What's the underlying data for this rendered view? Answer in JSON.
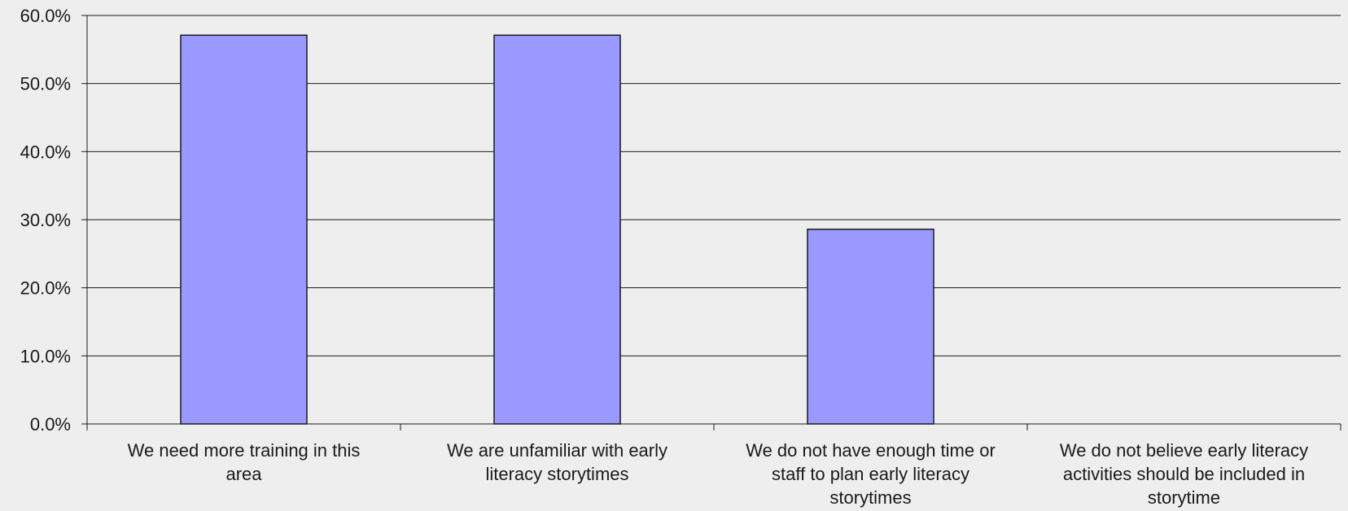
{
  "chart_data": {
    "type": "bar",
    "categories": [
      "We need more training in this area",
      "We are unfamiliar with early literacy storytimes",
      "We do not have enough time or staff to plan early literacy storytimes",
      "We do not believe early literacy activities should be included in storytime"
    ],
    "category_label_lines": [
      [
        "We need more training in this",
        "area"
      ],
      [
        "We are unfamiliar with early",
        "literacy storytimes"
      ],
      [
        "We do not have enough time or",
        "staff to plan early literacy",
        "storytimes"
      ],
      [
        "We do not believe early literacy",
        "activities should be included in",
        "storytime"
      ]
    ],
    "values": [
      57.1,
      57.1,
      28.6,
      0
    ],
    "unit": "%",
    "ylim": [
      0,
      60
    ],
    "yticks": [
      0,
      10,
      20,
      30,
      40,
      50,
      60
    ],
    "ytick_labels": [
      "0.0%",
      "10.0%",
      "20.0%",
      "30.0%",
      "40.0%",
      "50.0%",
      "60.0%"
    ],
    "title": "",
    "xlabel": "",
    "ylabel": "",
    "grid": true,
    "legend": "none",
    "colors": {
      "bar_fill": "#9999ff",
      "bar_stroke": "#1a1a1a",
      "grid": "#1a1a1a",
      "background": "#eeeeee"
    }
  }
}
